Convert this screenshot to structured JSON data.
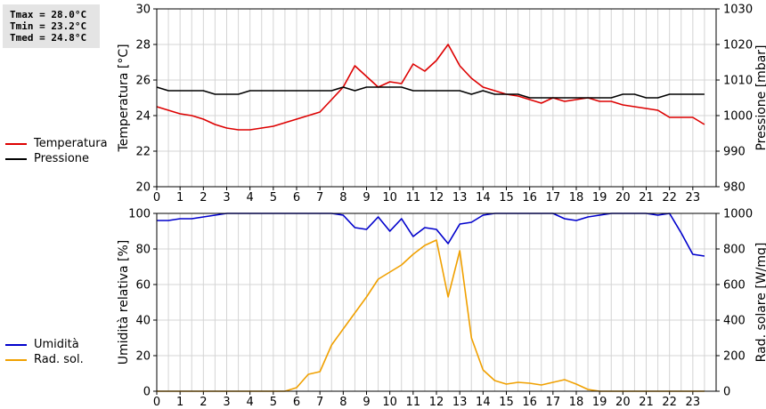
{
  "stats": {
    "tmax": "Tmax = 28.0°C",
    "tmin": "Tmin = 23.2°C",
    "tmed": "Tmed = 24.8°C"
  },
  "legend_top": [
    {
      "label": "Temperatura",
      "color": "#dd0000"
    },
    {
      "label": "Pressione",
      "color": "#000000"
    }
  ],
  "legend_bottom": [
    {
      "label": "Umidità",
      "color": "#0000cc"
    },
    {
      "label": "Rad. sol.",
      "color": "#f0a000"
    }
  ],
  "chart_data": [
    {
      "type": "line",
      "x_ticks": [
        "0",
        "1",
        "2",
        "3",
        "4",
        "5",
        "6",
        "7",
        "8",
        "9",
        "10",
        "11",
        "12",
        "13",
        "14",
        "15",
        "16",
        "17",
        "18",
        "19",
        "20",
        "21",
        "22",
        "23"
      ],
      "xlim": [
        0,
        24
      ],
      "ylabel": "Temperatura [°C]",
      "ylim": [
        20,
        30
      ],
      "y_ticks": [
        "20",
        "22",
        "24",
        "26",
        "28",
        "30"
      ],
      "y2label": "Pressione [mbar]",
      "y2lim": [
        980,
        1030
      ],
      "y2_ticks": [
        "980",
        "990",
        "1000",
        "1010",
        "1020",
        "1030"
      ],
      "series": [
        {
          "name": "Temperatura",
          "axis": "left",
          "color": "#dd0000",
          "x": [
            0,
            0.5,
            1,
            1.5,
            2,
            2.5,
            3,
            3.5,
            4,
            4.5,
            5,
            5.5,
            6,
            6.5,
            7,
            7.5,
            8,
            8.5,
            9,
            9.5,
            10,
            10.5,
            11,
            11.5,
            12,
            12.5,
            13,
            13.5,
            14,
            14.5,
            15,
            15.5,
            16,
            16.5,
            17,
            17.5,
            18,
            18.5,
            19,
            19.5,
            20,
            20.5,
            21,
            21.5,
            22,
            22.5,
            23,
            23.5
          ],
          "y": [
            24.5,
            24.3,
            24.1,
            24.0,
            23.8,
            23.5,
            23.3,
            23.2,
            23.2,
            23.3,
            23.4,
            23.6,
            23.8,
            24.0,
            24.2,
            24.9,
            25.6,
            26.8,
            26.2,
            25.6,
            25.9,
            25.8,
            26.9,
            26.5,
            27.1,
            28.0,
            26.8,
            26.1,
            25.6,
            25.4,
            25.2,
            25.1,
            24.9,
            24.7,
            25.0,
            24.8,
            24.9,
            25.0,
            24.8,
            24.8,
            24.6,
            24.5,
            24.4,
            24.3,
            23.9,
            23.9,
            23.9,
            23.5
          ]
        },
        {
          "name": "Pressione",
          "axis": "right",
          "color": "#000000",
          "x": [
            0,
            0.5,
            1,
            1.5,
            2,
            2.5,
            3,
            3.5,
            4,
            4.5,
            5,
            5.5,
            6,
            6.5,
            7,
            7.5,
            8,
            8.5,
            9,
            9.5,
            10,
            10.5,
            11,
            11.5,
            12,
            12.5,
            13,
            13.5,
            14,
            14.5,
            15,
            15.5,
            16,
            16.5,
            17,
            17.5,
            18,
            18.5,
            19,
            19.5,
            20,
            20.5,
            21,
            21.5,
            22,
            22.5,
            23,
            23.5
          ],
          "y": [
            1008,
            1007,
            1007,
            1007,
            1007,
            1006,
            1006,
            1006,
            1007,
            1007,
            1007,
            1007,
            1007,
            1007,
            1007,
            1007,
            1008,
            1007,
            1008,
            1008,
            1008,
            1008,
            1007,
            1007,
            1007,
            1007,
            1007,
            1006,
            1007,
            1006,
            1006,
            1006,
            1005,
            1005,
            1005,
            1005,
            1005,
            1005,
            1005,
            1005,
            1006,
            1006,
            1005,
            1005,
            1006,
            1006,
            1006,
            1006
          ]
        }
      ]
    },
    {
      "type": "line",
      "x_ticks": [
        "0",
        "1",
        "2",
        "3",
        "4",
        "5",
        "6",
        "7",
        "8",
        "9",
        "10",
        "11",
        "12",
        "13",
        "14",
        "15",
        "16",
        "17",
        "18",
        "19",
        "20",
        "21",
        "22",
        "23"
      ],
      "xlim": [
        0,
        24
      ],
      "ylabel": "Umidità relativa [%]",
      "ylim": [
        0,
        100
      ],
      "y_ticks": [
        "0",
        "20",
        "40",
        "60",
        "80",
        "100"
      ],
      "y2label": "Rad. solare [W/mq]",
      "y2lim": [
        0,
        1000
      ],
      "y2_ticks": [
        "0",
        "200",
        "400",
        "600",
        "800",
        "1000"
      ],
      "series": [
        {
          "name": "Umidità",
          "axis": "left",
          "color": "#0000cc",
          "x": [
            0,
            0.5,
            1,
            1.5,
            2,
            2.5,
            3,
            3.5,
            4,
            4.5,
            5,
            5.5,
            6,
            6.5,
            7,
            7.5,
            8,
            8.5,
            9,
            9.5,
            10,
            10.5,
            11,
            11.5,
            12,
            12.5,
            13,
            13.5,
            14,
            14.5,
            15,
            15.5,
            16,
            16.5,
            17,
            17.5,
            18,
            18.5,
            19,
            19.5,
            20,
            20.5,
            21,
            21.5,
            22,
            22.5,
            23,
            23.5
          ],
          "y": [
            96,
            96,
            97,
            97,
            98,
            99,
            100,
            100,
            100,
            100,
            100,
            100,
            100,
            100,
            100,
            100,
            99,
            92,
            91,
            98,
            90,
            97,
            87,
            92,
            91,
            83,
            94,
            95,
            99,
            100,
            100,
            100,
            100,
            100,
            100,
            97,
            96,
            98,
            99,
            100,
            100,
            100,
            100,
            99,
            100,
            89,
            77,
            76
          ]
        },
        {
          "name": "Rad. sol.",
          "axis": "right",
          "color": "#f0a000",
          "x": [
            0,
            0.5,
            1,
            1.5,
            2,
            2.5,
            3,
            3.5,
            4,
            4.5,
            5,
            5.5,
            6,
            6.5,
            7,
            7.5,
            8,
            8.5,
            9,
            9.5,
            10,
            10.5,
            11,
            11.5,
            12,
            12.5,
            13,
            13.5,
            14,
            14.5,
            15,
            15.5,
            16,
            16.5,
            17,
            17.5,
            18,
            18.5,
            19,
            19.5,
            20,
            20.5,
            21,
            21.5,
            22,
            22.5,
            23,
            23.5
          ],
          "y": [
            0,
            0,
            0,
            0,
            0,
            0,
            0,
            0,
            0,
            0,
            0,
            0,
            20,
            95,
            110,
            260,
            350,
            440,
            530,
            630,
            670,
            710,
            770,
            820,
            850,
            530,
            790,
            300,
            120,
            60,
            40,
            50,
            45,
            35,
            50,
            65,
            40,
            10,
            0,
            0,
            0,
            0,
            0,
            0,
            0,
            0,
            0,
            0
          ]
        }
      ]
    }
  ]
}
